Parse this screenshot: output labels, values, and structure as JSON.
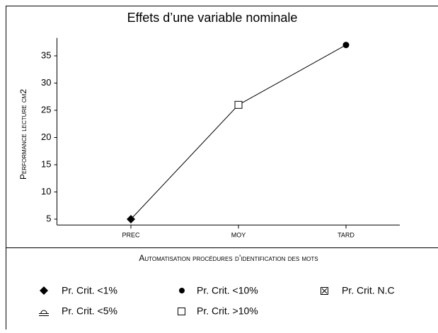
{
  "chart_data": {
    "type": "line",
    "title": "Effets d’une variable nominale",
    "y_label": "Performance lecture cm2",
    "x_label": "Automatisation procédures d’identification des mots",
    "categories": [
      "PREC",
      "MOY",
      "TARD"
    ],
    "series": [
      {
        "color": "#000000",
        "values": [
          5,
          26,
          37
        ],
        "markers": [
          "diamond",
          "square",
          "circle"
        ]
      }
    ],
    "ylim": [
      4,
      37
    ],
    "yticks": [
      5,
      10,
      15,
      20,
      25,
      30,
      35
    ],
    "legend": [
      "Pr. Crit. <1%",
      "Pr. Crit. <10%",
      "Pr. Crit. N.C",
      "Pr. Crit. <5%",
      "Pr. Crit. >10%"
    ]
  }
}
